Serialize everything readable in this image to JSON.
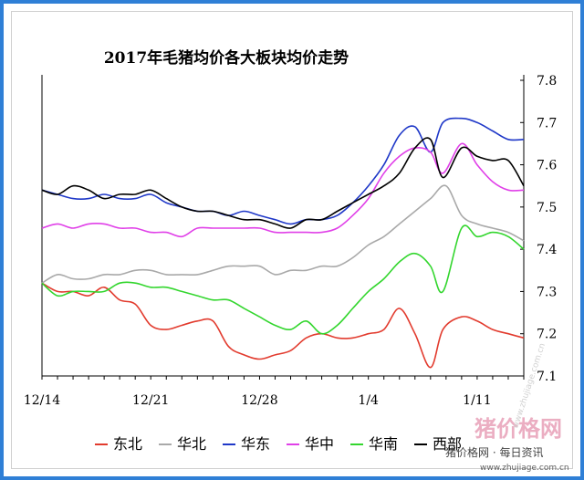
{
  "chart_data": {
    "type": "line",
    "title": "2017年毛猪均价各大板块均价走势",
    "xlabel": "",
    "ylabel": "",
    "x_ticks": [
      "12/14",
      "12/21",
      "12/28",
      "1/4",
      "1/11"
    ],
    "x_tick_index": [
      0,
      7,
      14,
      21,
      28
    ],
    "ylim": [
      7.1,
      7.8
    ],
    "y_ticks": [
      "7.1",
      "7.2",
      "7.3",
      "7.4",
      "7.5",
      "7.6",
      "7.7",
      "7.8"
    ],
    "y_axis_side": "right",
    "grid": false,
    "legend_position": "bottom",
    "series": [
      {
        "name": "东北",
        "color": "#e23b2e",
        "x": [
          0,
          1,
          2,
          3,
          4,
          5,
          6,
          7,
          8,
          9,
          10,
          11,
          12,
          13,
          14,
          15,
          16,
          17,
          18,
          19,
          20,
          21,
          22,
          23,
          24,
          25,
          25.8,
          27,
          28,
          29,
          30,
          31
        ],
        "values": [
          7.32,
          7.3,
          7.3,
          7.29,
          7.31,
          7.28,
          7.27,
          7.22,
          7.21,
          7.22,
          7.23,
          7.23,
          7.17,
          7.15,
          7.14,
          7.15,
          7.16,
          7.19,
          7.2,
          7.19,
          7.19,
          7.2,
          7.21,
          7.26,
          7.2,
          7.12,
          7.21,
          7.24,
          7.23,
          7.21,
          7.2,
          7.19
        ]
      },
      {
        "name": "华北",
        "color": "#a9a9a9",
        "x": [
          0,
          1,
          2,
          3,
          4,
          5,
          6,
          7,
          8,
          9,
          10,
          11,
          12,
          13,
          14,
          15,
          16,
          17,
          18,
          19,
          20,
          21,
          22,
          23,
          24,
          25,
          26,
          27,
          28,
          29,
          30,
          31
        ],
        "values": [
          7.32,
          7.34,
          7.33,
          7.33,
          7.34,
          7.34,
          7.35,
          7.35,
          7.34,
          7.34,
          7.34,
          7.35,
          7.36,
          7.36,
          7.36,
          7.34,
          7.35,
          7.35,
          7.36,
          7.36,
          7.38,
          7.41,
          7.43,
          7.46,
          7.49,
          7.52,
          7.55,
          7.48,
          7.46,
          7.45,
          7.44,
          7.42
        ]
      },
      {
        "name": "华东",
        "color": "#1f38c8",
        "x": [
          0,
          1,
          2,
          3,
          4,
          5,
          6,
          7,
          8,
          9,
          10,
          11,
          12,
          13,
          14,
          15,
          16,
          17,
          18,
          19,
          20,
          21,
          22,
          23,
          24,
          25,
          25.8,
          27,
          28,
          29,
          30,
          31
        ],
        "values": [
          7.54,
          7.53,
          7.52,
          7.52,
          7.53,
          7.52,
          7.52,
          7.53,
          7.51,
          7.5,
          7.49,
          7.49,
          7.48,
          7.49,
          7.48,
          7.47,
          7.46,
          7.47,
          7.47,
          7.48,
          7.51,
          7.55,
          7.6,
          7.67,
          7.69,
          7.63,
          7.7,
          7.71,
          7.7,
          7.68,
          7.66,
          7.66
        ]
      },
      {
        "name": "华中",
        "color": "#e040e8",
        "x": [
          0,
          1,
          2,
          3,
          4,
          5,
          6,
          7,
          8,
          9,
          10,
          11,
          12,
          13,
          14,
          15,
          16,
          17,
          18,
          19,
          20,
          21,
          22,
          23,
          24,
          25,
          25.8,
          27,
          28,
          29,
          30,
          31
        ],
        "values": [
          7.45,
          7.46,
          7.45,
          7.46,
          7.46,
          7.45,
          7.45,
          7.44,
          7.44,
          7.43,
          7.45,
          7.45,
          7.45,
          7.45,
          7.45,
          7.44,
          7.44,
          7.44,
          7.44,
          7.45,
          7.48,
          7.52,
          7.58,
          7.62,
          7.64,
          7.63,
          7.58,
          7.65,
          7.6,
          7.56,
          7.54,
          7.54
        ]
      },
      {
        "name": "华南",
        "color": "#33d62e",
        "x": [
          0,
          1,
          2,
          3,
          4,
          5,
          6,
          7,
          8,
          9,
          10,
          11,
          12,
          13,
          14,
          15,
          16,
          17,
          18,
          19,
          20,
          21,
          22,
          23,
          24,
          25,
          25.8,
          27,
          28,
          29,
          30,
          31
        ],
        "values": [
          7.32,
          7.29,
          7.3,
          7.3,
          7.3,
          7.32,
          7.32,
          7.31,
          7.31,
          7.3,
          7.29,
          7.28,
          7.28,
          7.26,
          7.24,
          7.22,
          7.21,
          7.23,
          7.2,
          7.22,
          7.26,
          7.3,
          7.33,
          7.37,
          7.39,
          7.36,
          7.3,
          7.45,
          7.43,
          7.44,
          7.43,
          7.4
        ]
      },
      {
        "name": "西部",
        "color": "#000000",
        "x": [
          0,
          1,
          2,
          3,
          4,
          5,
          6,
          7,
          8,
          9,
          10,
          11,
          12,
          13,
          14,
          15,
          16,
          17,
          18,
          19,
          20,
          21,
          22,
          23,
          24,
          25,
          25.8,
          27,
          28,
          29,
          30,
          31
        ],
        "values": [
          7.54,
          7.53,
          7.55,
          7.54,
          7.52,
          7.53,
          7.53,
          7.54,
          7.52,
          7.5,
          7.49,
          7.49,
          7.48,
          7.47,
          7.47,
          7.46,
          7.45,
          7.47,
          7.47,
          7.49,
          7.51,
          7.53,
          7.55,
          7.58,
          7.64,
          7.66,
          7.57,
          7.64,
          7.62,
          7.61,
          7.61,
          7.55
        ]
      }
    ]
  },
  "legend": {
    "items": [
      {
        "label": "东北",
        "color": "#e23b2e"
      },
      {
        "label": "华北",
        "color": "#a9a9a9"
      },
      {
        "label": "华东",
        "color": "#1f38c8"
      },
      {
        "label": "华中",
        "color": "#e040e8"
      },
      {
        "label": "华南",
        "color": "#33d62e"
      },
      {
        "label": "西部",
        "color": "#000000"
      }
    ]
  },
  "watermark": {
    "brand": "猪价格网",
    "slogan": "猪价格网 · 每日资讯",
    "url": "www.zhujiage.com.cn",
    "side_text": "www.zhujiage.com.cn"
  }
}
